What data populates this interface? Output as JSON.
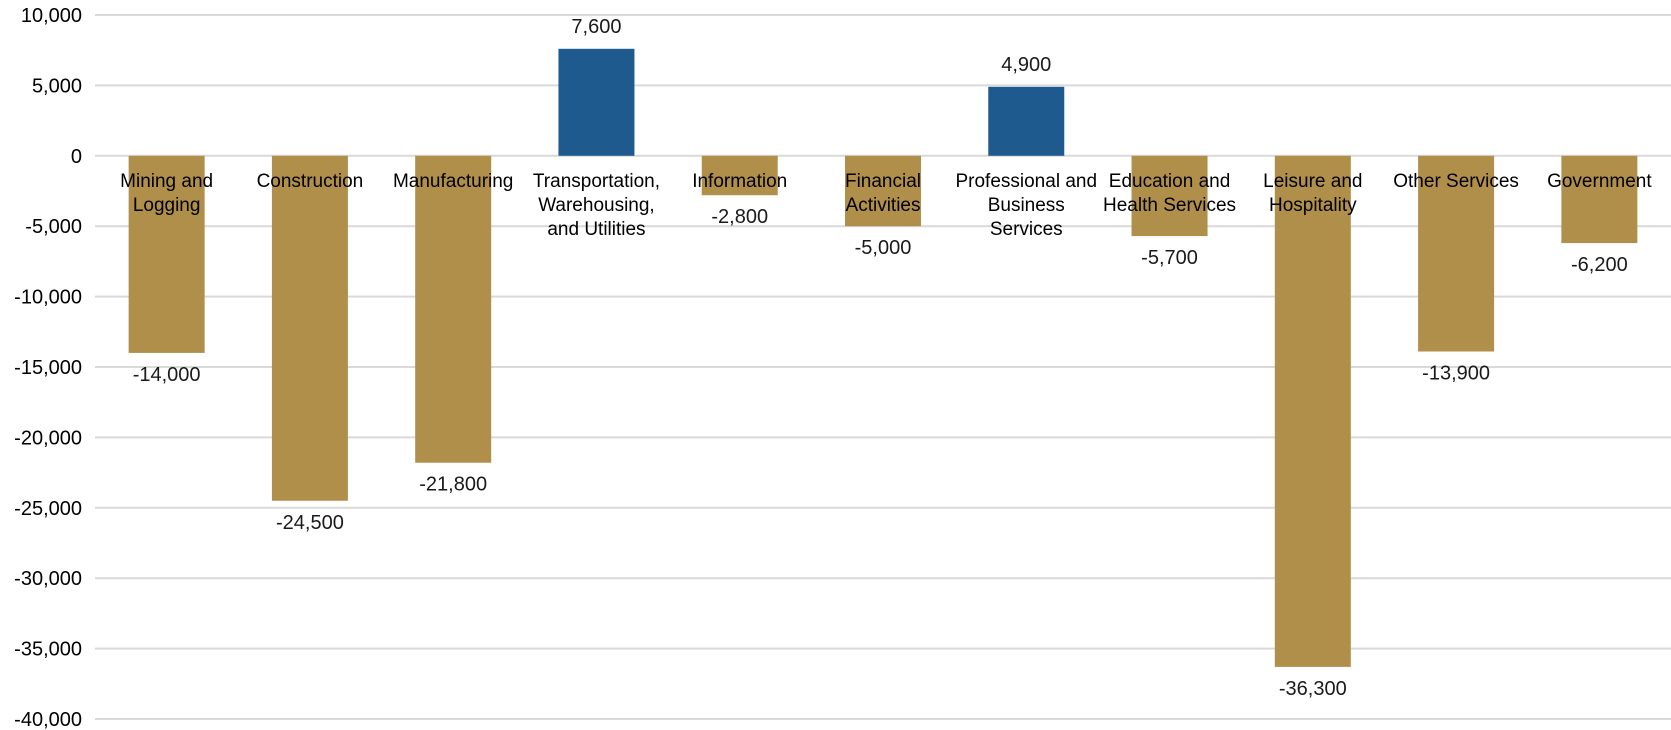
{
  "chart_data": {
    "type": "bar",
    "title": "",
    "xlabel": "",
    "ylabel": "",
    "categories": [
      "Mining and Logging",
      "Construction",
      "Manufacturing",
      "Transportation, Warehousing, and Utilities",
      "Information",
      "Financial Activities",
      "Professional and Business Services",
      "Education and Health Services",
      "Leisure and Hospitality",
      "Other Services",
      "Government"
    ],
    "category_lines": [
      [
        "Mining and",
        "Logging"
      ],
      [
        "Construction"
      ],
      [
        "Manufacturing"
      ],
      [
        "Transportation,",
        "Warehousing,",
        "and Utilities"
      ],
      [
        "Information"
      ],
      [
        "Financial",
        "Activities"
      ],
      [
        "Professional and",
        "Business",
        "Services"
      ],
      [
        "Education and",
        "Health Services"
      ],
      [
        "Leisure and",
        "Hospitality"
      ],
      [
        "Other Services"
      ],
      [
        "Government"
      ]
    ],
    "values": [
      -14000,
      -24500,
      -21800,
      7600,
      -2800,
      -5000,
      4900,
      -5700,
      -36300,
      -13900,
      -6200
    ],
    "data_labels": [
      "-14,000",
      "-24,500",
      "-21,800",
      "7,600",
      "-2,800",
      "-5,000",
      "4,900",
      "-5,700",
      "-36,300",
      "-13,900",
      "-6,200"
    ],
    "ylim": [
      -40000,
      10000
    ],
    "yticks": [
      10000,
      5000,
      0,
      -5000,
      -10000,
      -15000,
      -20000,
      -25000,
      -30000,
      -35000,
      -40000
    ],
    "ytick_labels": [
      "10,000",
      "5,000",
      "0",
      "-5,000",
      "-10,000",
      "-15,000",
      "-20,000",
      "-25,000",
      "-30,000",
      "-35,000",
      "-40,000"
    ],
    "grid": true,
    "legend": "none",
    "colors": {
      "positive": "#1f5a8e",
      "negative": "#b08f4b",
      "grid": "#d9d9d9"
    }
  }
}
